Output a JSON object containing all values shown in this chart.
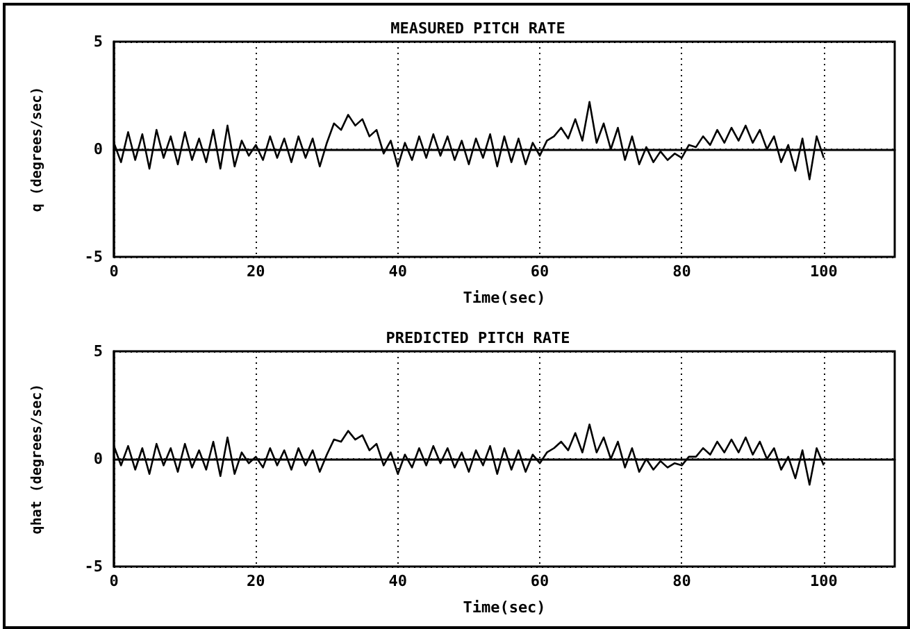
{
  "chart_data": [
    {
      "type": "line",
      "title": "MEASURED PITCH RATE",
      "xlabel": "Time(sec)",
      "ylabel": "q (degrees/sec)",
      "color": "#000000",
      "xlim": [
        0,
        110
      ],
      "xticks": [
        0,
        20,
        40,
        60,
        80,
        100
      ],
      "ylim": [
        -5,
        5
      ],
      "yticks": [
        -5,
        0,
        5
      ],
      "grid": true,
      "x": [
        0,
        1,
        2,
        3,
        4,
        5,
        6,
        7,
        8,
        9,
        10,
        11,
        12,
        13,
        14,
        15,
        16,
        17,
        18,
        19,
        20,
        21,
        22,
        23,
        24,
        25,
        26,
        27,
        28,
        29,
        30,
        31,
        32,
        33,
        34,
        35,
        36,
        37,
        38,
        39,
        40,
        41,
        42,
        43,
        44,
        45,
        46,
        47,
        48,
        49,
        50,
        51,
        52,
        53,
        54,
        55,
        56,
        57,
        58,
        59,
        60,
        61,
        62,
        63,
        64,
        65,
        66,
        67,
        68,
        69,
        70,
        71,
        72,
        73,
        74,
        75,
        76,
        77,
        78,
        79,
        80,
        81,
        82,
        83,
        84,
        85,
        86,
        87,
        88,
        89,
        90,
        91,
        92,
        93,
        94,
        95,
        96,
        97,
        98,
        99,
        100
      ],
      "values": [
        0.3,
        -0.6,
        0.8,
        -0.5,
        0.7,
        -0.9,
        0.9,
        -0.4,
        0.6,
        -0.7,
        0.8,
        -0.5,
        0.5,
        -0.6,
        0.9,
        -0.9,
        1.1,
        -0.8,
        0.4,
        -0.3,
        0.2,
        -0.5,
        0.6,
        -0.4,
        0.5,
        -0.6,
        0.6,
        -0.4,
        0.5,
        -0.8,
        0.3,
        1.2,
        0.9,
        1.6,
        1.1,
        1.4,
        0.6,
        0.9,
        -0.2,
        0.4,
        -0.8,
        0.3,
        -0.5,
        0.6,
        -0.4,
        0.7,
        -0.3,
        0.6,
        -0.5,
        0.4,
        -0.7,
        0.5,
        -0.4,
        0.7,
        -0.8,
        0.6,
        -0.6,
        0.5,
        -0.7,
        0.3,
        -0.3,
        0.4,
        0.6,
        1.0,
        0.5,
        1.4,
        0.4,
        2.2,
        0.3,
        1.2,
        0.0,
        1.0,
        -0.5,
        0.6,
        -0.7,
        0.1,
        -0.6,
        -0.1,
        -0.5,
        -0.2,
        -0.4,
        0.2,
        0.1,
        0.6,
        0.2,
        0.9,
        0.3,
        1.0,
        0.4,
        1.1,
        0.3,
        0.9,
        0.0,
        0.6,
        -0.6,
        0.2,
        -1.0,
        0.5,
        -1.4,
        0.6,
        -0.4
      ]
    },
    {
      "type": "line",
      "title": "PREDICTED PITCH RATE",
      "xlabel": "Time(sec)",
      "ylabel": "qhat (degrees/sec)",
      "color": "#000000",
      "xlim": [
        0,
        110
      ],
      "xticks": [
        0,
        20,
        40,
        60,
        80,
        100
      ],
      "ylim": [
        -5,
        5
      ],
      "yticks": [
        -5,
        0,
        5
      ],
      "grid": true,
      "x": [
        0,
        1,
        2,
        3,
        4,
        5,
        6,
        7,
        8,
        9,
        10,
        11,
        12,
        13,
        14,
        15,
        16,
        17,
        18,
        19,
        20,
        21,
        22,
        23,
        24,
        25,
        26,
        27,
        28,
        29,
        30,
        31,
        32,
        33,
        34,
        35,
        36,
        37,
        38,
        39,
        40,
        41,
        42,
        43,
        44,
        45,
        46,
        47,
        48,
        49,
        50,
        51,
        52,
        53,
        54,
        55,
        56,
        57,
        58,
        59,
        60,
        61,
        62,
        63,
        64,
        65,
        66,
        67,
        68,
        69,
        70,
        71,
        72,
        73,
        74,
        75,
        76,
        77,
        78,
        79,
        80,
        81,
        82,
        83,
        84,
        85,
        86,
        87,
        88,
        89,
        90,
        91,
        92,
        93,
        94,
        95,
        96,
        97,
        98,
        99,
        100
      ],
      "values": [
        0.6,
        -0.3,
        0.6,
        -0.5,
        0.5,
        -0.7,
        0.7,
        -0.3,
        0.5,
        -0.6,
        0.7,
        -0.4,
        0.4,
        -0.5,
        0.8,
        -0.8,
        1.0,
        -0.7,
        0.3,
        -0.2,
        0.1,
        -0.4,
        0.5,
        -0.3,
        0.4,
        -0.5,
        0.5,
        -0.3,
        0.4,
        -0.6,
        0.2,
        0.9,
        0.8,
        1.3,
        0.9,
        1.1,
        0.4,
        0.7,
        -0.3,
        0.3,
        -0.7,
        0.2,
        -0.4,
        0.5,
        -0.3,
        0.6,
        -0.2,
        0.5,
        -0.4,
        0.3,
        -0.6,
        0.4,
        -0.3,
        0.6,
        -0.7,
        0.5,
        -0.5,
        0.4,
        -0.6,
        0.2,
        -0.2,
        0.3,
        0.5,
        0.8,
        0.4,
        1.2,
        0.3,
        1.6,
        0.3,
        1.0,
        0.0,
        0.8,
        -0.4,
        0.5,
        -0.6,
        0.0,
        -0.5,
        -0.1,
        -0.4,
        -0.2,
        -0.3,
        0.1,
        0.1,
        0.5,
        0.2,
        0.8,
        0.3,
        0.9,
        0.3,
        1.0,
        0.2,
        0.8,
        0.0,
        0.5,
        -0.5,
        0.1,
        -0.9,
        0.4,
        -1.2,
        0.5,
        -0.3
      ]
    }
  ]
}
